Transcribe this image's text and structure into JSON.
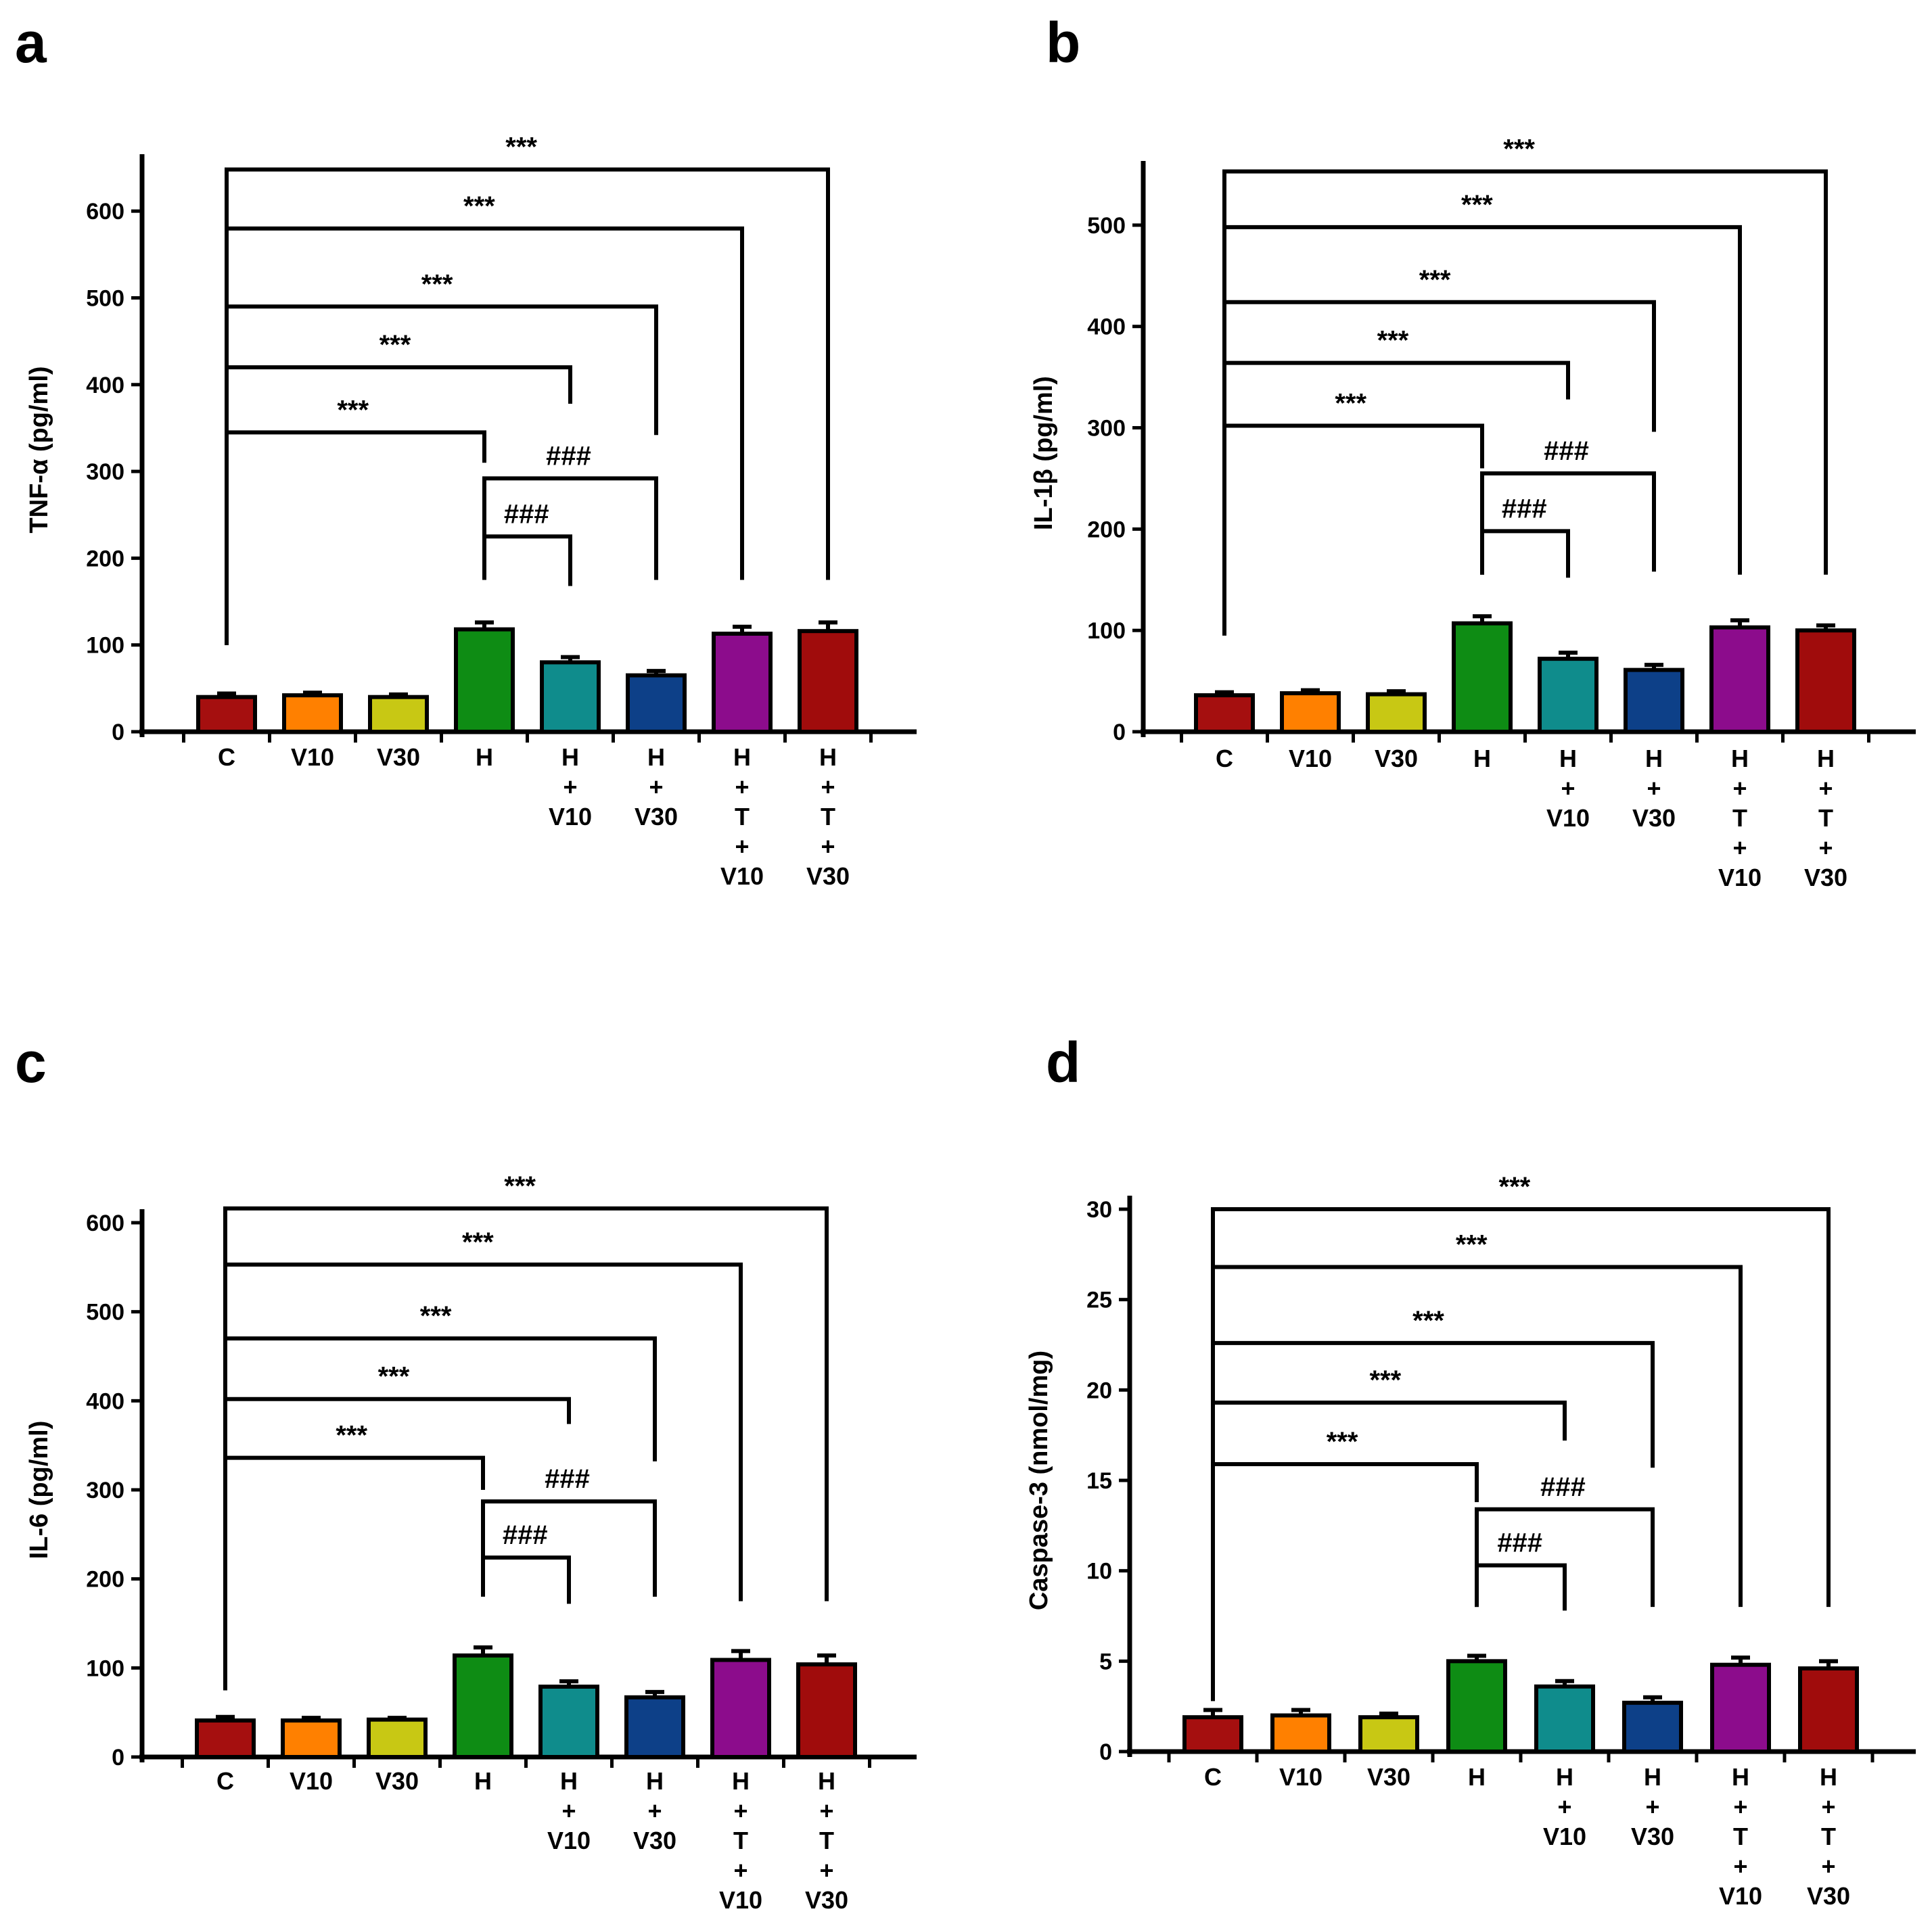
{
  "figure": {
    "categories": [
      [
        "C"
      ],
      [
        "V10"
      ],
      [
        "V30"
      ],
      [
        "H"
      ],
      [
        "H",
        "+",
        "V10"
      ],
      [
        "H",
        "+",
        "V30"
      ],
      [
        "H",
        "+",
        "T",
        "+",
        "V10"
      ],
      [
        "H",
        "+",
        "T",
        "+",
        "V30"
      ]
    ],
    "bar_colors": [
      "#a50f0f",
      "#ff8000",
      "#c8c814",
      "#0e8c14",
      "#0f8c8c",
      "#0d4088",
      "#8c0c8c",
      "#a00c0c"
    ],
    "significance_symbols": [
      "***",
      "###"
    ]
  },
  "chart_data": [
    {
      "panel": "a",
      "type": "bar",
      "ylabel": "TNF-α (pg/ml)",
      "ylim": [
        0,
        650
      ],
      "yticks": [
        "0",
        "100",
        "200",
        "300",
        "400",
        "500",
        "600"
      ],
      "categories": [
        "C",
        "V10",
        "V30",
        "H",
        "H+V10",
        "H+V30",
        "H+T+V10",
        "H+T+V30"
      ],
      "values": [
        40,
        42,
        40,
        118,
        80,
        65,
        113,
        116
      ],
      "errors": [
        4,
        3,
        3,
        8,
        6,
        5,
        8,
        10
      ],
      "brackets": [
        {
          "from": 0,
          "to": 7,
          "y": 648,
          "start_y": 100,
          "end_y": 175,
          "label": "***"
        },
        {
          "from": 0,
          "to": 6,
          "y": 580,
          "start_y": 100,
          "end_y": 175,
          "label": "***"
        },
        {
          "from": 0,
          "to": 5,
          "y": 490,
          "start_y": 100,
          "end_y": 342,
          "label": "***"
        },
        {
          "from": 0,
          "to": 4,
          "y": 420,
          "start_y": 100,
          "end_y": 378,
          "label": "***"
        },
        {
          "from": 0,
          "to": 3,
          "y": 345,
          "start_y": 100,
          "end_y": 310,
          "label": "***"
        },
        {
          "from": 3,
          "to": 5,
          "y": 292,
          "start_y": 175,
          "end_y": 175,
          "label": "###"
        },
        {
          "from": 3,
          "to": 4,
          "y": 225,
          "start_y": 175,
          "end_y": 168,
          "label": "###"
        }
      ]
    },
    {
      "panel": "b",
      "type": "bar",
      "ylabel": "IL-1β (pg/ml)",
      "ylim": [
        0,
        550
      ],
      "yticks": [
        "0",
        "100",
        "200",
        "300",
        "400",
        "500"
      ],
      "categories": [
        "C",
        "V10",
        "V30",
        "H",
        "H+V10",
        "H+V30",
        "H+T+V10",
        "H+T+V30"
      ],
      "values": [
        36,
        38,
        37,
        107,
        72,
        61,
        103,
        100
      ],
      "errors": [
        3,
        3,
        3,
        7,
        6,
        5,
        7,
        5
      ],
      "brackets": [
        {
          "from": 0,
          "to": 7,
          "y": 553,
          "start_y": 95,
          "end_y": 155,
          "label": "***"
        },
        {
          "from": 0,
          "to": 6,
          "y": 498,
          "start_y": 95,
          "end_y": 155,
          "label": "***"
        },
        {
          "from": 0,
          "to": 5,
          "y": 424,
          "start_y": 95,
          "end_y": 296,
          "label": "***"
        },
        {
          "from": 0,
          "to": 4,
          "y": 364,
          "start_y": 95,
          "end_y": 328,
          "label": "***"
        },
        {
          "from": 0,
          "to": 3,
          "y": 302,
          "start_y": 95,
          "end_y": 260,
          "label": "***"
        },
        {
          "from": 3,
          "to": 5,
          "y": 255,
          "start_y": 155,
          "end_y": 158,
          "label": "###"
        },
        {
          "from": 3,
          "to": 4,
          "y": 198,
          "start_y": 155,
          "end_y": 152,
          "label": "###"
        }
      ]
    },
    {
      "panel": "c",
      "type": "bar",
      "ylabel": "IL-6 (pg/ml)",
      "ylim": [
        0,
        600
      ],
      "yticks": [
        "0",
        "100",
        "200",
        "300",
        "400",
        "500",
        "600"
      ],
      "categories": [
        "C",
        "V10",
        "V30",
        "H",
        "H+V10",
        "H+V30",
        "H+T+V10",
        "H+T+V30"
      ],
      "values": [
        41,
        41,
        42,
        114,
        79,
        67,
        109,
        104
      ],
      "errors": [
        4,
        3,
        2,
        9,
        6,
        6,
        10,
        10
      ],
      "brackets": [
        {
          "from": 0,
          "to": 7,
          "y": 616,
          "start_y": 75,
          "end_y": 175,
          "label": "***"
        },
        {
          "from": 0,
          "to": 6,
          "y": 553,
          "start_y": 75,
          "end_y": 175,
          "label": "***"
        },
        {
          "from": 0,
          "to": 5,
          "y": 470,
          "start_y": 75,
          "end_y": 332,
          "label": "***"
        },
        {
          "from": 0,
          "to": 4,
          "y": 402,
          "start_y": 75,
          "end_y": 374,
          "label": "***"
        },
        {
          "from": 0,
          "to": 3,
          "y": 336,
          "start_y": 75,
          "end_y": 300,
          "label": "***"
        },
        {
          "from": 3,
          "to": 5,
          "y": 287,
          "start_y": 180,
          "end_y": 180,
          "label": "###"
        },
        {
          "from": 3,
          "to": 4,
          "y": 224,
          "start_y": 180,
          "end_y": 172,
          "label": "###"
        }
      ]
    },
    {
      "panel": "d",
      "type": "bar",
      "ylabel": "Caspase-3 (nmol/mg)",
      "ylim": [
        0,
        30
      ],
      "yticks": [
        "0",
        "5",
        "10",
        "15",
        "20",
        "25",
        "30"
      ],
      "categories": [
        "C",
        "V10",
        "V30",
        "H",
        "H+V10",
        "H+V30",
        "H+T+V10",
        "H+T+V30"
      ],
      "values": [
        1.9,
        2.0,
        1.9,
        5.0,
        3.6,
        2.7,
        4.8,
        4.6
      ],
      "errors": [
        0.4,
        0.3,
        0.2,
        0.3,
        0.3,
        0.3,
        0.4,
        0.4
      ],
      "brackets": [
        {
          "from": 0,
          "to": 7,
          "y": 30,
          "start_y": 2.8,
          "end_y": 8,
          "label": "***"
        },
        {
          "from": 0,
          "to": 6,
          "y": 26.8,
          "start_y": 2.8,
          "end_y": 8,
          "label": "***"
        },
        {
          "from": 0,
          "to": 5,
          "y": 22.6,
          "start_y": 2.8,
          "end_y": 15.7,
          "label": "***"
        },
        {
          "from": 0,
          "to": 4,
          "y": 19.3,
          "start_y": 2.8,
          "end_y": 17.2,
          "label": "***"
        },
        {
          "from": 0,
          "to": 3,
          "y": 15.9,
          "start_y": 2.8,
          "end_y": 13.8,
          "label": "***"
        },
        {
          "from": 3,
          "to": 5,
          "y": 13.4,
          "start_y": 8,
          "end_y": 8,
          "label": "###"
        },
        {
          "from": 3,
          "to": 4,
          "y": 10.3,
          "start_y": 8,
          "end_y": 7.8,
          "label": "###"
        }
      ]
    }
  ]
}
